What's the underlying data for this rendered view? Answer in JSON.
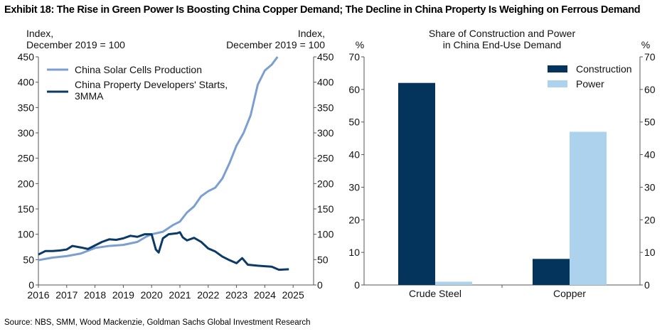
{
  "title": "Exhibit 18: The Rise in Green Power Is Boosting China Copper Demand; The Decline in China Property Is Weighing on Ferrous Demand",
  "source": "Source: NBS, SMM, Wood Mackenzie, Goldman Sachs Global Investment Research",
  "chart_data": [
    {
      "type": "line",
      "title": "",
      "ylabel_left": [
        "Index,",
        "December 2019 = 100"
      ],
      "ylabel_right": [
        "Index,",
        "December 2019 = 100"
      ],
      "ylim": [
        0,
        450
      ],
      "yticks": [
        "0",
        "50",
        "100",
        "150",
        "200",
        "250",
        "300",
        "350",
        "400",
        "450"
      ],
      "xlim": [
        2016,
        2025.75
      ],
      "xticks": [
        "2016",
        "2017",
        "2018",
        "2019",
        "2020",
        "2021",
        "2022",
        "2023",
        "2024",
        "2025"
      ],
      "legend": "top-left",
      "series": [
        {
          "name": "China Solar Cells Production",
          "color": "#7b9fd0",
          "x": [
            2016,
            2016.5,
            2017,
            2017.5,
            2018,
            2018.5,
            2019,
            2019.5,
            2019.8,
            2020,
            2020.4,
            2020.75,
            2021,
            2021.25,
            2021.5,
            2021.75,
            2022,
            2022.25,
            2022.5,
            2022.75,
            2023,
            2023.25,
            2023.5,
            2023.75,
            2024,
            2024.25,
            2024.45
          ],
          "y": [
            49,
            54,
            57,
            62,
            73,
            77,
            79,
            85,
            95,
            100,
            105,
            118,
            125,
            143,
            155,
            175,
            185,
            192,
            210,
            240,
            275,
            300,
            335,
            395,
            423,
            435,
            450
          ]
        },
        {
          "name": "China Property Developers' Starts, 3MMA",
          "color": "#0b3a66",
          "x": [
            2016,
            2016.25,
            2016.5,
            2016.75,
            2017,
            2017.2,
            2017.5,
            2017.75,
            2018,
            2018.25,
            2018.5,
            2018.75,
            2019,
            2019.25,
            2019.5,
            2019.75,
            2020,
            2020.15,
            2020.25,
            2020.4,
            2020.6,
            2020.9,
            2021,
            2021.1,
            2021.25,
            2021.5,
            2021.75,
            2022,
            2022.25,
            2022.5,
            2022.75,
            2023,
            2023.2,
            2023.4,
            2023.75,
            2024,
            2024.25,
            2024.5,
            2024.85
          ],
          "y": [
            60,
            67,
            67,
            68,
            70,
            77,
            74,
            71,
            78,
            85,
            90,
            89,
            92,
            97,
            95,
            100,
            100,
            70,
            64,
            92,
            100,
            102,
            104,
            94,
            88,
            93,
            85,
            72,
            66,
            56,
            49,
            43,
            53,
            40,
            38,
            37,
            36,
            30,
            31
          ]
        }
      ]
    },
    {
      "type": "bar",
      "title": [
        "Share of Construction and Power",
        "in China End-Use Demand"
      ],
      "ylabel_left": "%",
      "ylabel_right": "%",
      "ylim": [
        0,
        70
      ],
      "yticks": [
        "0",
        "10",
        "20",
        "30",
        "40",
        "50",
        "60",
        "70"
      ],
      "categories": [
        "Crude Steel",
        "Copper"
      ],
      "legend": "top-right",
      "series": [
        {
          "name": "Construction",
          "color": "#04335c",
          "values": [
            62,
            8
          ]
        },
        {
          "name": "Power",
          "color": "#acd2ee",
          "values": [
            1,
            47
          ]
        }
      ]
    }
  ]
}
